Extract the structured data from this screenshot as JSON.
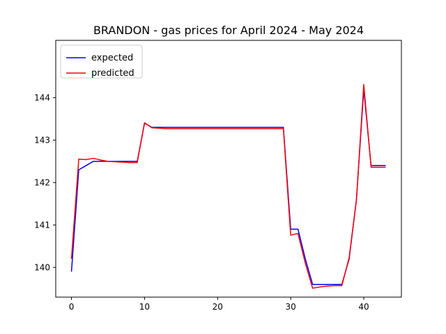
{
  "chart_data": {
    "type": "line",
    "title": "BRANDON - gas prices for April 2024 - May 2024",
    "xlabel": "",
    "ylabel": "",
    "xlim": [
      -2.15,
      45.15
    ],
    "ylim": [
      139.3,
      145.35
    ],
    "xticks": [
      0,
      10,
      20,
      30,
      40
    ],
    "yticks": [
      140,
      141,
      142,
      143,
      144
    ],
    "grid": false,
    "legend_position": "top-left",
    "x": [
      0,
      1,
      2,
      3,
      4,
      5,
      6,
      7,
      8,
      9,
      10,
      11,
      12,
      13,
      14,
      15,
      16,
      17,
      18,
      19,
      20,
      21,
      22,
      23,
      24,
      25,
      26,
      27,
      28,
      29,
      30,
      31,
      32,
      33,
      34,
      35,
      36,
      37,
      38,
      39,
      40,
      41,
      42,
      43
    ],
    "series": [
      {
        "name": "expected",
        "color": "#0000ff",
        "values": [
          139.9,
          142.3,
          142.4,
          142.5,
          142.5,
          142.5,
          142.5,
          142.5,
          142.5,
          142.5,
          143.4,
          143.3,
          143.3,
          143.3,
          143.3,
          143.3,
          143.3,
          143.3,
          143.3,
          143.3,
          143.3,
          143.3,
          143.3,
          143.3,
          143.3,
          143.3,
          143.3,
          143.3,
          143.3,
          143.3,
          140.9,
          140.9,
          140.2,
          139.6,
          139.6,
          139.6,
          139.6,
          139.6,
          140.2,
          141.6,
          144.2,
          142.4,
          142.4,
          142.4
        ]
      },
      {
        "name": "predicted",
        "color": "#ff0000",
        "values": [
          140.2,
          142.55,
          142.54,
          142.57,
          142.53,
          142.5,
          142.49,
          142.48,
          142.47,
          142.47,
          143.41,
          143.29,
          143.28,
          143.27,
          143.27,
          143.27,
          143.27,
          143.27,
          143.27,
          143.27,
          143.27,
          143.27,
          143.27,
          143.27,
          143.27,
          143.27,
          143.27,
          143.27,
          143.27,
          143.27,
          140.76,
          140.8,
          140.1,
          139.51,
          139.54,
          139.56,
          139.57,
          139.57,
          140.23,
          141.6,
          144.31,
          142.36,
          142.36,
          142.36
        ]
      }
    ]
  }
}
